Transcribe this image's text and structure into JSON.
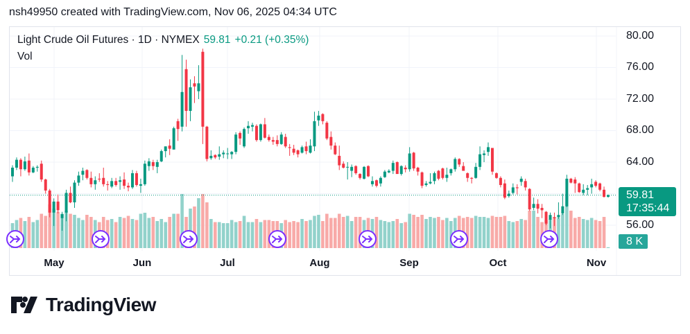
{
  "header": {
    "caption": "nsh49950 created with TradingView.com, Nov 06, 2025 04:34 UTC"
  },
  "legend": {
    "symbol": "Light Crude Oil Futures · 1D · NYMEX",
    "last": "59.81",
    "change": "+0.21 (+0.35%)",
    "volume_label": "Vol"
  },
  "price_axis": {
    "labels": [
      "80.00",
      "76.00",
      "72.00",
      "68.00",
      "64.00",
      "56.00"
    ]
  },
  "last_price": {
    "price": "59.81",
    "countdown": "17:35:44"
  },
  "last_volume": "8 K",
  "logo": {
    "text": "TradingView"
  },
  "colors": {
    "up": "#089981",
    "down": "#F23645",
    "vol_up": "#92d2cb",
    "vol_down": "#f8aaa8",
    "event": "#7b2fff"
  },
  "chart_data": {
    "type": "candlestick",
    "x_tick_labels": [
      "May",
      "Jun",
      "Jul",
      "Aug",
      "Sep",
      "Oct",
      "Nov"
    ],
    "y_tick_labels": [
      80,
      76,
      72,
      68,
      64,
      56
    ],
    "ylim": [
      53.5,
      81.2
    ],
    "grid": true,
    "last_price_line": 59.81,
    "event_markers_count": 7,
    "fields": [
      "open",
      "high",
      "low",
      "close",
      "volume_k"
    ],
    "candles": [
      [
        62.2,
        63.6,
        61.5,
        63.3,
        240
      ],
      [
        63.3,
        64.6,
        63.0,
        64.3,
        270
      ],
      [
        64.3,
        64.5,
        62.2,
        63.1,
        290
      ],
      [
        63.1,
        64.7,
        62.9,
        64.1,
        260
      ],
      [
        64.2,
        65.1,
        62.3,
        62.7,
        300
      ],
      [
        62.7,
        63.5,
        62.6,
        63.3,
        250
      ],
      [
        63.3,
        63.6,
        62.8,
        63.4,
        270
      ],
      [
        63.8,
        64.2,
        61.5,
        61.8,
        330
      ],
      [
        61.8,
        61.9,
        60.0,
        60.4,
        310
      ],
      [
        60.4,
        60.6,
        57.0,
        57.6,
        420
      ],
      [
        57.6,
        59.4,
        55.9,
        59.0,
        380
      ],
      [
        59.0,
        59.9,
        57.5,
        57.9,
        350
      ],
      [
        56.9,
        57.7,
        55.3,
        57.4,
        330
      ],
      [
        57.6,
        60.5,
        56.5,
        60.1,
        360
      ],
      [
        60.1,
        60.9,
        58.8,
        58.9,
        330
      ],
      [
        58.9,
        61.7,
        58.2,
        61.4,
        320
      ],
      [
        61.4,
        62.8,
        61.0,
        62.3,
        290
      ],
      [
        62.4,
        63.3,
        61.7,
        62.9,
        270
      ],
      [
        63.0,
        63.1,
        61.8,
        62.0,
        320
      ],
      [
        62.0,
        62.8,
        60.8,
        61.2,
        300
      ],
      [
        61.2,
        62.2,
        60.5,
        61.7,
        270
      ],
      [
        61.9,
        62.6,
        61.5,
        61.8,
        250
      ],
      [
        62.0,
        63.3,
        60.9,
        61.2,
        300
      ],
      [
        61.2,
        61.6,
        60.4,
        61.1,
        270
      ],
      [
        60.9,
        62.0,
        60.7,
        61.6,
        280
      ],
      [
        61.6,
        62.0,
        60.9,
        61.1,
        250
      ],
      [
        61.5,
        62.2,
        60.5,
        61.7,
        300
      ],
      [
        61.8,
        62.7,
        60.6,
        61.0,
        290
      ],
      [
        61.0,
        61.4,
        60.3,
        60.8,
        310
      ],
      [
        60.8,
        63.0,
        60.6,
        62.6,
        280
      ],
      [
        62.6,
        62.9,
        60.9,
        61.1,
        270
      ],
      [
        61.0,
        61.9,
        60.1,
        61.2,
        330
      ],
      [
        61.2,
        64.2,
        61.0,
        63.8,
        340
      ],
      [
        63.5,
        64.5,
        62.9,
        64.1,
        290
      ],
      [
        64.0,
        64.3,
        63.0,
        63.5,
        300
      ],
      [
        63.4,
        64.3,
        62.6,
        64.0,
        260
      ],
      [
        64.1,
        65.6,
        64.0,
        65.4,
        280
      ],
      [
        65.4,
        66.0,
        64.6,
        66.0,
        250
      ],
      [
        66.1,
        66.9,
        64.9,
        65.7,
        300
      ],
      [
        65.6,
        68.5,
        65.6,
        68.3,
        330
      ],
      [
        69.2,
        69.5,
        66.7,
        68.2,
        330
      ],
      [
        68.5,
        77.6,
        67.9,
        72.9,
        520
      ],
      [
        75.8,
        77.0,
        68.5,
        70.5,
        300
      ],
      [
        70.5,
        74.5,
        69.2,
        73.5,
        380
      ],
      [
        74.0,
        74.9,
        71.5,
        73.6,
        400
      ],
      [
        73.0,
        76.3,
        72.0,
        74.0,
        480
      ],
      [
        78.0,
        78.4,
        66.3,
        68.5,
        520
      ],
      [
        68.5,
        68.6,
        64.1,
        64.4,
        440
      ],
      [
        64.5,
        65.5,
        64.3,
        64.8,
        280
      ],
      [
        64.9,
        65.0,
        64.4,
        64.6,
        250
      ],
      [
        64.7,
        66.0,
        64.3,
        65.0,
        250
      ],
      [
        65.0,
        65.5,
        64.5,
        65.2,
        240
      ],
      [
        65.1,
        65.8,
        64.4,
        65.1,
        240
      ],
      [
        65.0,
        65.4,
        64.4,
        65.3,
        270
      ],
      [
        65.3,
        67.8,
        65.0,
        67.5,
        250
      ],
      [
        67.7,
        67.9,
        66.2,
        67.0,
        260
      ],
      [
        66.0,
        68.4,
        65.8,
        68.2,
        310
      ],
      [
        68.3,
        69.2,
        67.6,
        68.6,
        250
      ],
      [
        68.5,
        69.0,
        67.9,
        68.7,
        250
      ],
      [
        68.6,
        68.8,
        66.6,
        66.8,
        280
      ],
      [
        66.8,
        68.9,
        66.6,
        68.8,
        250
      ],
      [
        68.8,
        69.6,
        67.0,
        67.1,
        270
      ],
      [
        67.2,
        67.5,
        66.6,
        66.8,
        270
      ],
      [
        66.8,
        67.2,
        66.2,
        66.6,
        260
      ],
      [
        66.8,
        67.4,
        66.0,
        66.3,
        260
      ],
      [
        66.3,
        67.8,
        66.2,
        67.5,
        240
      ],
      [
        67.2,
        67.6,
        65.8,
        66.0,
        270
      ],
      [
        65.9,
        66.3,
        64.8,
        65.8,
        250
      ],
      [
        65.7,
        66.2,
        64.9,
        65.2,
        260
      ],
      [
        65.5,
        65.6,
        64.6,
        65.0,
        250
      ],
      [
        65.2,
        66.1,
        65.1,
        65.9,
        280
      ],
      [
        66.0,
        66.6,
        65.0,
        65.4,
        260
      ],
      [
        65.2,
        66.9,
        65.1,
        66.1,
        270
      ],
      [
        66.0,
        70.4,
        65.4,
        69.2,
        310
      ],
      [
        69.3,
        70.5,
        68.6,
        69.9,
        320
      ],
      [
        70.1,
        70.2,
        68.8,
        69.2,
        260
      ],
      [
        69.0,
        69.2,
        66.8,
        67.0,
        330
      ],
      [
        67.2,
        67.9,
        65.6,
        66.1,
        290
      ],
      [
        66.1,
        66.5,
        64.9,
        65.0,
        290
      ],
      [
        64.8,
        66.1,
        63.0,
        63.6,
        330
      ],
      [
        63.8,
        64.1,
        63.2,
        63.3,
        300
      ],
      [
        63.4,
        64.0,
        61.8,
        63.4,
        310
      ],
      [
        62.9,
        63.7,
        62.1,
        63.4,
        260
      ],
      [
        63.5,
        63.6,
        62.4,
        62.6,
        300
      ],
      [
        62.5,
        62.6,
        61.8,
        62.0,
        300
      ],
      [
        61.9,
        63.5,
        61.8,
        63.4,
        270
      ],
      [
        63.5,
        63.6,
        62.1,
        62.2,
        290
      ],
      [
        61.2,
        62.2,
        60.9,
        61.6,
        280
      ],
      [
        61.7,
        61.8,
        60.8,
        61.0,
        300
      ],
      [
        61.3,
        62.2,
        60.9,
        62.0,
        270
      ],
      [
        62.1,
        63.0,
        62.0,
        62.8,
        260
      ],
      [
        62.7,
        63.1,
        62.6,
        62.9,
        250
      ],
      [
        62.9,
        64.2,
        62.5,
        63.9,
        260
      ],
      [
        64.0,
        64.1,
        62.5,
        62.5,
        280
      ],
      [
        62.5,
        63.6,
        62.3,
        63.5,
        240
      ],
      [
        63.3,
        63.6,
        62.7,
        63.1,
        250
      ],
      [
        63.1,
        65.9,
        62.8,
        65.1,
        330
      ],
      [
        65.2,
        65.3,
        62.9,
        63.2,
        320
      ],
      [
        63.3,
        63.4,
        62.3,
        62.8,
        300
      ],
      [
        62.7,
        62.8,
        60.7,
        61.0,
        320
      ],
      [
        61.1,
        61.6,
        60.9,
        61.3,
        280
      ],
      [
        61.3,
        62.6,
        61.2,
        61.5,
        300
      ],
      [
        61.6,
        62.8,
        61.2,
        62.6,
        290
      ],
      [
        62.9,
        63.0,
        61.7,
        61.9,
        300
      ],
      [
        63.2,
        63.3,
        61.8,
        62.0,
        270
      ],
      [
        62.0,
        63.3,
        61.5,
        62.4,
        290
      ],
      [
        62.6,
        63.2,
        62.3,
        63.1,
        260
      ],
      [
        63.1,
        64.6,
        62.8,
        64.4,
        290
      ],
      [
        64.4,
        64.5,
        63.4,
        63.7,
        310
      ],
      [
        63.5,
        64.0,
        62.9,
        62.9,
        290
      ],
      [
        62.6,
        62.7,
        61.5,
        62.0,
        300
      ],
      [
        62.0,
        62.1,
        61.3,
        61.9,
        290
      ],
      [
        62.0,
        63.9,
        61.9,
        63.4,
        310
      ],
      [
        63.4,
        66.0,
        63.0,
        65.0,
        300
      ],
      [
        64.9,
        65.5,
        64.0,
        65.1,
        300
      ],
      [
        65.3,
        66.5,
        64.8,
        65.9,
        290
      ],
      [
        65.8,
        65.8,
        62.4,
        62.8,
        310
      ],
      [
        62.6,
        62.7,
        61.9,
        62.0,
        300
      ],
      [
        62.0,
        62.2,
        60.8,
        61.1,
        300
      ],
      [
        61.3,
        61.8,
        59.3,
        59.5,
        310
      ],
      [
        59.7,
        60.4,
        59.5,
        60.0,
        260
      ],
      [
        60.1,
        61.3,
        59.9,
        60.8,
        250
      ],
      [
        60.8,
        61.2,
        59.9,
        60.7,
        260
      ],
      [
        61.5,
        62.2,
        61.0,
        61.9,
        280
      ],
      [
        61.6,
        61.9,
        60.4,
        60.8,
        270
      ],
      [
        60.6,
        60.7,
        57.8,
        58.0,
        360
      ],
      [
        58.2,
        59.5,
        57.9,
        58.7,
        360
      ],
      [
        58.7,
        59.3,
        57.5,
        58.1,
        300
      ],
      [
        58.2,
        58.7,
        56.9,
        57.9,
        250
      ],
      [
        57.7,
        57.8,
        56.0,
        56.2,
        270
      ],
      [
        56.7,
        57.6,
        55.6,
        57.3,
        280
      ],
      [
        57.0,
        57.6,
        55.9,
        56.9,
        300
      ],
      [
        57.0,
        58.9,
        56.8,
        57.3,
        290
      ],
      [
        57.5,
        60.0,
        57.3,
        58.4,
        330
      ],
      [
        58.4,
        62.4,
        58.3,
        61.9,
        520
      ],
      [
        61.9,
        62.0,
        61.3,
        61.4,
        360
      ],
      [
        61.8,
        62.1,
        60.1,
        61.3,
        290
      ],
      [
        61.3,
        61.4,
        60.1,
        60.2,
        300
      ],
      [
        60.1,
        61.2,
        59.8,
        60.5,
        280
      ],
      [
        60.5,
        61.1,
        59.8,
        60.7,
        270
      ],
      [
        60.8,
        61.9,
        60.0,
        61.2,
        290
      ],
      [
        61.5,
        61.7,
        60.8,
        61.0,
        270
      ],
      [
        61.3,
        61.4,
        60.3,
        60.5,
        260
      ],
      [
        60.5,
        60.9,
        59.5,
        59.6,
        300
      ],
      [
        59.6,
        59.9,
        59.5,
        59.81,
        8
      ]
    ]
  }
}
